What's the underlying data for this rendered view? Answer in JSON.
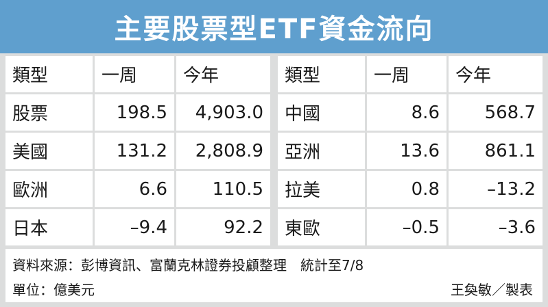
{
  "title": "主要股票型ETF資金流向",
  "left_table": {
    "headers": [
      "類型",
      "一周",
      "今年"
    ],
    "rows": [
      {
        "type": "股票",
        "week": "198.5",
        "year": "4,903.0"
      },
      {
        "type": "美國",
        "week": "131.2",
        "year": "2,808.9"
      },
      {
        "type": "歐洲",
        "week": "6.6",
        "year": "110.5"
      },
      {
        "type": "日本",
        "week": "–9.4",
        "year": "92.2"
      }
    ]
  },
  "right_table": {
    "headers": [
      "類型",
      "一周",
      "今年"
    ],
    "rows": [
      {
        "type": "中國",
        "week": "8.6",
        "year": "568.7"
      },
      {
        "type": "亞洲",
        "week": "13.6",
        "year": "861.1"
      },
      {
        "type": "拉美",
        "week": "0.8",
        "year": "–13.2"
      },
      {
        "type": "東歐",
        "week": "–0.5",
        "year": "–3.6"
      }
    ]
  },
  "footer": {
    "source": "資料來源：彭博資訊、富蘭克林證券投顧整理　統計至7/8",
    "unit": "單位：億美元",
    "credit": "王奐敏／製表"
  },
  "colors": {
    "title_bg": "#5f9fce",
    "title_text": "#ffffff",
    "grid_bg": "#dcdddd",
    "cell_bg": "#ffffff"
  }
}
